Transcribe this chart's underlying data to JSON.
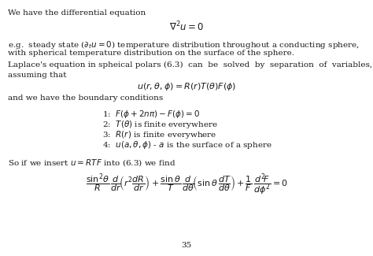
{
  "background_color": "#ffffff",
  "text_color": "#1a1a1a",
  "page_number": "35",
  "figsize": [
    4.74,
    3.25
  ],
  "dpi": 100
}
